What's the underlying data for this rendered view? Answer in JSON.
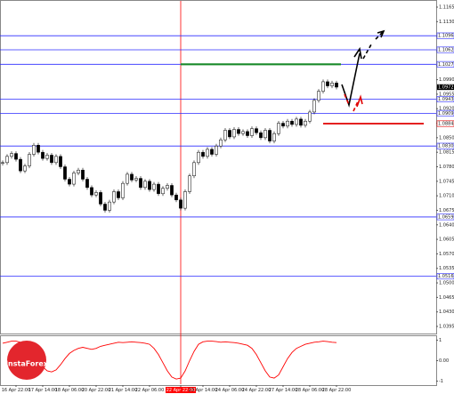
{
  "chart_data": {
    "type": "candlestick",
    "watermark": "InstaForex",
    "close": [
      1.079,
      1.0805,
      1.0812,
      1.0798,
      1.077,
      1.0782,
      1.081,
      1.0832,
      1.0815,
      1.08,
      1.0808,
      1.079,
      1.0805,
      1.078,
      1.075,
      1.0738,
      1.0765,
      1.0772,
      1.075,
      1.073,
      1.0712,
      1.0718,
      1.069,
      1.0675,
      1.0695,
      1.072,
      1.0705,
      1.074,
      1.0762,
      1.0748,
      1.0752,
      1.073,
      1.0745,
      1.0725,
      1.0738,
      1.0715,
      1.0728,
      1.0735,
      1.0712,
      1.07,
      1.068,
      1.072,
      1.0758,
      1.079,
      1.0815,
      1.0805,
      1.0822,
      1.081,
      1.083,
      1.0845,
      1.0868,
      1.0852,
      1.087,
      1.086,
      1.0865,
      1.0855,
      1.0872,
      1.0862,
      1.085,
      1.0868,
      1.0842,
      1.086,
      1.0885,
      1.0878,
      1.089,
      1.0882,
      1.0895,
      1.088,
      1.089,
      1.0912,
      1.094,
      1.0962,
      1.0985,
      1.0975,
      1.0982,
      1.0972
    ],
    "oscillator": [
      0.85,
      0.9,
      0.95,
      0.95,
      0.9,
      0.8,
      0.6,
      0.3,
      0.0,
      -0.3,
      -0.5,
      -0.55,
      -0.45,
      -0.2,
      0.1,
      0.35,
      0.5,
      0.6,
      0.65,
      0.6,
      0.55,
      0.6,
      0.7,
      0.75,
      0.8,
      0.85,
      0.9,
      0.88,
      0.9,
      0.92,
      0.9,
      0.88,
      0.85,
      0.8,
      0.6,
      0.3,
      -0.1,
      -0.5,
      -0.8,
      -0.9,
      -0.85,
      -0.5,
      0.0,
      0.45,
      0.8,
      0.92,
      0.95,
      0.95,
      0.93,
      0.9,
      0.92,
      0.9,
      0.88,
      0.85,
      0.8,
      0.75,
      0.6,
      0.3,
      -0.1,
      -0.5,
      -0.8,
      -0.85,
      -0.7,
      -0.3,
      0.1,
      0.4,
      0.6,
      0.7,
      0.8,
      0.85,
      0.9,
      0.92,
      0.95,
      0.93,
      0.9,
      0.88
    ],
    "up_color": "#ffffff",
    "down_color": "#000000",
    "oscillator_color": "#ff0000",
    "xlim": [
      -0.6,
      97.4
    ],
    "ylim": [
      1.038,
      1.118
    ],
    "yticks": [
      1.1165,
      {
        "value": 1.113,
        "label": "1.1130"
      },
      1.1095,
      {
        "value": 1.106,
        "label": "1.1060"
      },
      1.1025,
      {
        "value": 1.099,
        "label": "1.0990"
      },
      1.0955,
      {
        "value": 1.092,
        "label": "1.0920"
      },
      1.0885,
      {
        "value": 1.085,
        "label": "1.0850"
      },
      1.0815,
      {
        "value": 1.078,
        "label": "1.0780"
      },
      1.0745,
      {
        "value": 1.071,
        "label": "1.0710"
      },
      1.0675,
      {
        "value": 1.064,
        "label": "1.0640"
      },
      1.0605,
      {
        "value": 1.057,
        "label": "1.0570"
      },
      1.0535,
      {
        "value": 1.05,
        "label": "1.0500"
      },
      1.0465,
      {
        "value": 1.043,
        "label": "1.0430"
      },
      1.0395
    ],
    "y2lim": [
      -1.15,
      1.15
    ],
    "y2ticks": [
      1,
      {
        "value": 0,
        "label": "0.00"
      },
      -1
    ],
    "xticks": [
      {
        "value": 3,
        "label": "16 Apr 22:00"
      },
      {
        "value": 9,
        "label": "17 Apr 14:00"
      },
      {
        "value": 15,
        "label": "18 Apr 06:00"
      },
      {
        "value": 21,
        "label": "20 Apr 22:00"
      },
      {
        "value": 27,
        "label": "21 Apr 14:00"
      },
      {
        "value": 33,
        "label": "22 Apr 06:00"
      },
      {
        "value": 40,
        "label": "22 Apr 22:00"
      },
      {
        "value": 45,
        "label": "23 Apr 14:00"
      },
      {
        "value": 51,
        "label": "24 Apr 06:00"
      },
      {
        "value": 57,
        "label": "24 Apr 22:00"
      },
      {
        "value": 63,
        "label": "27 Apr 14:00"
      },
      {
        "value": 69,
        "label": "28 Apr 06:00"
      },
      {
        "value": 75,
        "label": "28 Apr 22:00"
      }
    ],
    "vline": 40,
    "vline_color": "#ff0000",
    "levels_color": "#2b2bff",
    "levels": [
      1.1096,
      1.1062,
      1.1027,
      1.0943,
      1.0909,
      {
        "value": 1.083,
        "label": "1.0830"
      },
      1.0659,
      1.0516
    ],
    "resistance": {
      "value": 1.1027,
      "color": "#1a8a2a"
    },
    "support": {
      "value": 1.0884,
      "color": "#e00000"
    }
  }
}
